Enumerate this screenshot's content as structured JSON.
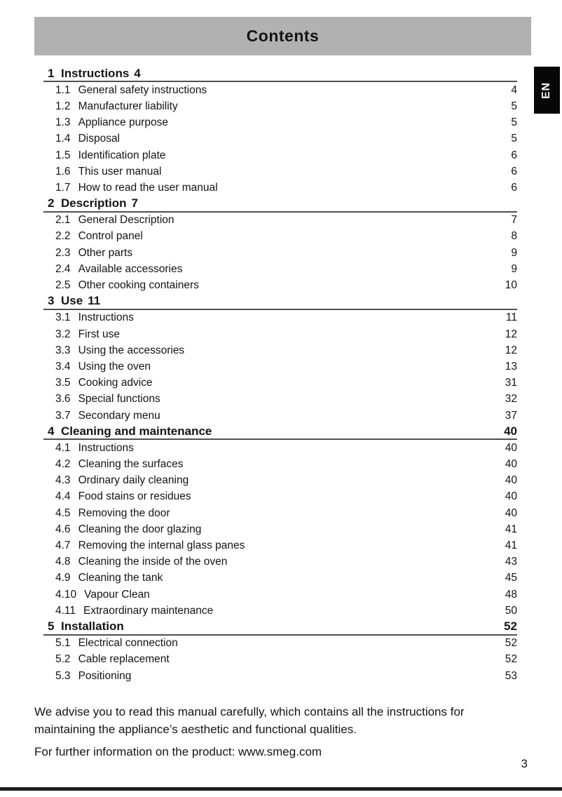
{
  "header": {
    "title": "Contents",
    "language_tab": "EN"
  },
  "colors": {
    "header_bg": "#b1b1b1",
    "tab_bg": "#070707",
    "tab_text": "#ffffff",
    "rule": "#505050",
    "text": "#141414",
    "bottom_bar": "#1f1f1f"
  },
  "toc": {
    "sections": [
      {
        "num": "1",
        "title": "Instructions",
        "inline_page": "4",
        "right_page": "",
        "items": [
          {
            "num": "1.1",
            "title": "General safety instructions",
            "page": "4"
          },
          {
            "num": "1.2",
            "title": "Manufacturer liability",
            "page": "5"
          },
          {
            "num": "1.3",
            "title": "Appliance purpose",
            "page": "5"
          },
          {
            "num": "1.4",
            "title": "Disposal",
            "page": "5"
          },
          {
            "num": "1.5",
            "title": "Identification plate",
            "page": "6"
          },
          {
            "num": "1.6",
            "title": "This user manual",
            "page": "6"
          },
          {
            "num": "1.7",
            "title": "How to read the user manual",
            "page": "6"
          }
        ]
      },
      {
        "num": "2",
        "title": "Description",
        "inline_page": "7",
        "right_page": "",
        "items": [
          {
            "num": "2.1",
            "title": "General Description",
            "page": "7"
          },
          {
            "num": "2.2",
            "title": "Control panel",
            "page": "8"
          },
          {
            "num": "2.3",
            "title": "Other parts",
            "page": "9"
          },
          {
            "num": "2.4",
            "title": "Available accessories",
            "page": "9"
          },
          {
            "num": "2.5",
            "title": "Other cooking containers",
            "page": "10"
          }
        ]
      },
      {
        "num": "3",
        "title": "Use",
        "inline_page": "11",
        "right_page": "",
        "items": [
          {
            "num": "3.1",
            "title": "Instructions",
            "page": "11"
          },
          {
            "num": "3.2",
            "title": "First use",
            "page": "12"
          },
          {
            "num": "3.3",
            "title": "Using the accessories",
            "page": "12"
          },
          {
            "num": "3.4",
            "title": "Using the oven",
            "page": "13"
          },
          {
            "num": "3.5",
            "title": "Cooking advice",
            "page": "31"
          },
          {
            "num": "3.6",
            "title": "Special functions",
            "page": "32"
          },
          {
            "num": "3.7",
            "title": "Secondary menu",
            "page": "37"
          }
        ]
      },
      {
        "num": "4",
        "title": "Cleaning and maintenance",
        "inline_page": "",
        "right_page": "40",
        "items": [
          {
            "num": "4.1",
            "title": "Instructions",
            "page": "40"
          },
          {
            "num": "4.2",
            "title": "Cleaning the surfaces",
            "page": "40"
          },
          {
            "num": "4.3",
            "title": "Ordinary daily cleaning",
            "page": "40"
          },
          {
            "num": "4.4",
            "title": "Food stains or residues",
            "page": "40"
          },
          {
            "num": "4.5",
            "title": "Removing the door",
            "page": "40"
          },
          {
            "num": "4.6",
            "title": "Cleaning the door glazing",
            "page": "41"
          },
          {
            "num": "4.7",
            "title": "Removing the internal glass panes",
            "page": "41"
          },
          {
            "num": "4.8",
            "title": "Cleaning the inside of the oven",
            "page": "43"
          },
          {
            "num": "4.9",
            "title": "Cleaning the tank",
            "page": "45"
          },
          {
            "num": "4.10",
            "title": "Vapour Clean",
            "page": "48"
          },
          {
            "num": "4.11",
            "title": "Extraordinary maintenance",
            "page": "50"
          }
        ]
      },
      {
        "num": "5",
        "title": "Installation",
        "inline_page": "",
        "right_page": "52",
        "items": [
          {
            "num": "5.1",
            "title": "Electrical connection",
            "page": "52"
          },
          {
            "num": "5.2",
            "title": "Cable replacement",
            "page": "52"
          },
          {
            "num": "5.3",
            "title": "Positioning",
            "page": "53"
          }
        ]
      }
    ]
  },
  "footer": {
    "advice_line1": "We advise you to read this manual carefully, which contains all the instructions for",
    "advice_line2": "maintaining the appliance’s aesthetic and functional qualities.",
    "info_line": "For further information on the product: www.smeg.com",
    "page_number": "3"
  }
}
